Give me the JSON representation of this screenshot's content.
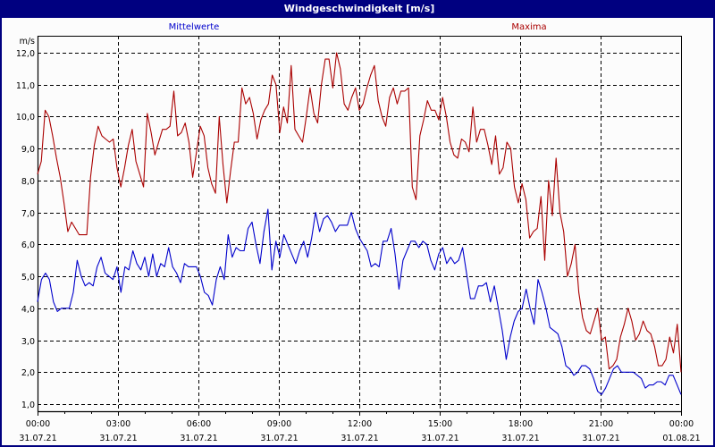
{
  "window": {
    "title": "Windgeschwindigkeit [m/s]"
  },
  "legend": {
    "mean_label": "Mittelwerte",
    "max_label": "Maxima"
  },
  "colors": {
    "titlebar": "#000080",
    "background": "#fcfcfc",
    "mean_series": "#0000cc",
    "max_series": "#aa0000",
    "grid": "#000000"
  },
  "chart_data": {
    "type": "line",
    "title": "Windgeschwindigkeit [m/s]",
    "xlabel": "",
    "ylabel": "m/s",
    "ylim": [
      0.8,
      12.5
    ],
    "xlim_hours": [
      0,
      24
    ],
    "grid": true,
    "legend_position": "top",
    "y_ticks": [
      "1,0",
      "2,0",
      "3,0",
      "4,0",
      "5,0",
      "6,0",
      "7,0",
      "8,0",
      "9,0",
      "10,0",
      "11,0",
      "12,0"
    ],
    "x_ticks": [
      {
        "time": "00:00",
        "date": "31.07.21"
      },
      {
        "time": "03:00",
        "date": "31.07.21"
      },
      {
        "time": "06:00",
        "date": "31.07.21"
      },
      {
        "time": "09:00",
        "date": "31.07.21"
      },
      {
        "time": "12:00",
        "date": "31.07.21"
      },
      {
        "time": "15:00",
        "date": "31.07.21"
      },
      {
        "time": "18:00",
        "date": "31.07.21"
      },
      {
        "time": "21:00",
        "date": "31.07.21"
      },
      {
        "time": "00:00",
        "date": "01.08.21"
      }
    ],
    "x_step_minutes": 10,
    "series": [
      {
        "name": "Maxima",
        "color": "#aa0000",
        "values": [
          8.2,
          8.6,
          10.2,
          10.0,
          9.4,
          8.7,
          8.1,
          7.3,
          6.4,
          6.7,
          6.5,
          6.3,
          6.3,
          6.3,
          8.1,
          9.1,
          9.7,
          9.4,
          9.3,
          9.2,
          9.3,
          8.4,
          7.8,
          8.4,
          9.1,
          9.6,
          8.6,
          8.2,
          7.8,
          10.1,
          9.5,
          8.8,
          9.2,
          9.6,
          9.6,
          9.7,
          10.8,
          9.4,
          9.5,
          9.8,
          9.2,
          8.1,
          8.9,
          9.7,
          9.4,
          8.4,
          7.9,
          7.6,
          10.0,
          8.5,
          7.3,
          8.3,
          9.2,
          9.2,
          10.9,
          10.4,
          10.6,
          10.1,
          9.3,
          9.9,
          10.2,
          10.4,
          11.3,
          11.0,
          9.5,
          10.3,
          9.8,
          11.6,
          9.6,
          9.4,
          9.2,
          10.0,
          10.9,
          10.1,
          9.8,
          11.0,
          11.8,
          11.8,
          10.9,
          12.0,
          11.5,
          10.4,
          10.2,
          10.6,
          10.9,
          10.2,
          10.4,
          10.9,
          11.3,
          11.6,
          10.5,
          10.0,
          9.7,
          10.6,
          10.9,
          10.4,
          10.8,
          10.8,
          10.9,
          7.8,
          7.4,
          9.4,
          9.9,
          10.5,
          10.2,
          10.2,
          9.9,
          10.6,
          10.0,
          9.2,
          8.8,
          8.7,
          9.3,
          9.2,
          8.9,
          10.3,
          9.2,
          9.6,
          9.6,
          9.1,
          8.5,
          9.4,
          8.2,
          8.4,
          9.2,
          9.0,
          7.8,
          7.3,
          7.9,
          7.4,
          6.2,
          6.4,
          6.5,
          7.5,
          5.5,
          8.0,
          6.9,
          8.7,
          7.0,
          6.4,
          5.0,
          5.4,
          6.0,
          4.5,
          3.7,
          3.3,
          3.2,
          3.6,
          4.0,
          3.0,
          3.1,
          2.1,
          2.2,
          2.4,
          3.1,
          3.5,
          4.0,
          3.6,
          3.0,
          3.2,
          3.6,
          3.3,
          3.2,
          2.8,
          2.2,
          2.2,
          2.4,
          3.1,
          2.6,
          3.5,
          2.0
        ]
      },
      {
        "name": "Mittelwerte",
        "color": "#0000cc",
        "values": [
          4.2,
          4.9,
          5.1,
          4.9,
          4.2,
          3.9,
          4.0,
          4.0,
          4.0,
          4.5,
          5.5,
          5.0,
          4.7,
          4.8,
          4.7,
          5.3,
          5.6,
          5.1,
          5.0,
          4.9,
          5.3,
          4.5,
          5.3,
          5.2,
          5.8,
          5.4,
          5.2,
          5.6,
          5.0,
          5.7,
          5.0,
          5.4,
          5.3,
          5.9,
          5.3,
          5.1,
          4.8,
          5.4,
          5.3,
          5.3,
          5.3,
          5.0,
          4.5,
          4.4,
          4.1,
          4.9,
          5.3,
          4.9,
          6.3,
          5.6,
          5.9,
          5.8,
          5.8,
          6.5,
          6.7,
          6.0,
          5.4,
          6.4,
          7.1,
          5.2,
          6.1,
          5.6,
          6.3,
          6.0,
          5.7,
          5.4,
          5.8,
          6.1,
          5.6,
          6.2,
          7.0,
          6.4,
          6.8,
          6.9,
          6.7,
          6.4,
          6.6,
          6.6,
          6.6,
          7.0,
          6.5,
          6.2,
          6.0,
          5.8,
          5.3,
          5.4,
          5.3,
          6.1,
          6.1,
          6.5,
          5.7,
          4.6,
          5.5,
          5.8,
          6.1,
          6.1,
          5.9,
          6.1,
          6.0,
          5.5,
          5.2,
          5.7,
          5.9,
          5.4,
          5.6,
          5.4,
          5.5,
          5.9,
          5.1,
          4.3,
          4.3,
          4.7,
          4.7,
          4.8,
          4.2,
          4.7,
          4.0,
          3.3,
          2.4,
          3.1,
          3.6,
          3.9,
          4.0,
          4.6,
          4.0,
          3.5,
          4.9,
          4.5,
          4.0,
          3.4,
          3.3,
          3.2,
          2.8,
          2.2,
          2.1,
          1.9,
          2.0,
          2.2,
          2.2,
          2.1,
          1.8,
          1.4,
          1.3,
          1.5,
          1.8,
          2.1,
          2.2,
          2.0,
          2.0,
          2.0,
          2.0,
          1.9,
          1.8,
          1.5,
          1.6,
          1.6,
          1.7,
          1.7,
          1.6,
          1.9,
          1.9,
          1.6,
          1.3
        ]
      }
    ]
  }
}
